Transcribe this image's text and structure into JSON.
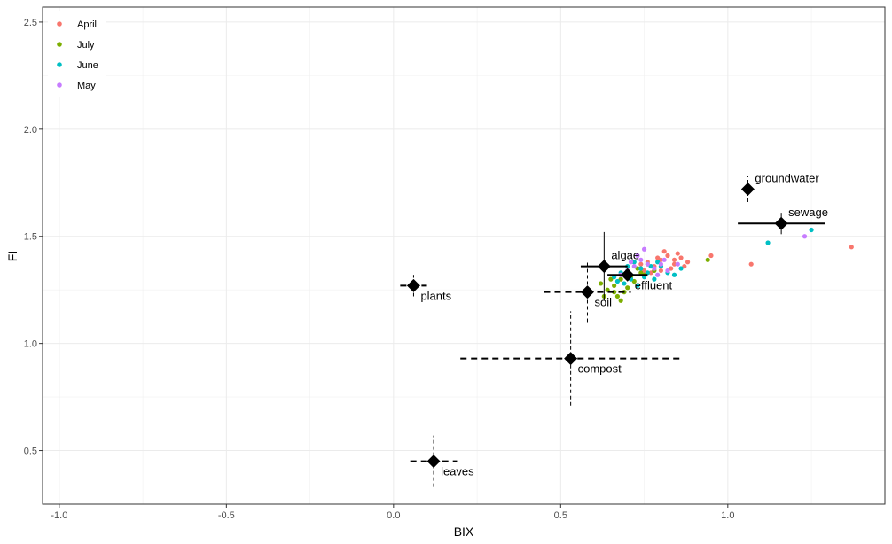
{
  "chart_data": {
    "type": "scatter",
    "xlabel": "BIX",
    "ylabel": "FI",
    "xlim": [
      -1.05,
      1.47
    ],
    "ylim": [
      0.25,
      2.57
    ],
    "xticks": [
      -1.0,
      -0.5,
      0.0,
      0.5,
      1.0
    ],
    "xtick_labels": [
      "-1.0",
      "-0.5",
      "0.0",
      "0.5",
      "1.0"
    ],
    "yticks": [
      0.5,
      1.0,
      1.5,
      2.0,
      2.5
    ],
    "ytick_labels": [
      "0.5",
      "1.0",
      "1.5",
      "2.0",
      "2.5"
    ],
    "grid": true,
    "legend_position": "top-left",
    "series": [
      {
        "name": "April",
        "color": "#F8766D",
        "points": [
          [
            0.76,
            1.38
          ],
          [
            0.78,
            1.36
          ],
          [
            0.8,
            1.39
          ],
          [
            0.82,
            1.41
          ],
          [
            0.84,
            1.37
          ],
          [
            0.86,
            1.4
          ],
          [
            0.88,
            1.38
          ],
          [
            0.85,
            1.42
          ],
          [
            0.81,
            1.43
          ],
          [
            0.79,
            1.4
          ],
          [
            0.75,
            1.34
          ],
          [
            0.83,
            1.35
          ],
          [
            0.87,
            1.36
          ],
          [
            0.95,
            1.41
          ],
          [
            1.07,
            1.37
          ],
          [
            1.37,
            1.45
          ],
          [
            0.77,
            1.33
          ],
          [
            0.8,
            1.34
          ],
          [
            0.74,
            1.37
          ],
          [
            0.84,
            1.39
          ]
        ]
      },
      {
        "name": "July",
        "color": "#7CAE00",
        "points": [
          [
            0.62,
            1.28
          ],
          [
            0.64,
            1.25
          ],
          [
            0.66,
            1.27
          ],
          [
            0.68,
            1.3
          ],
          [
            0.7,
            1.26
          ],
          [
            0.72,
            1.29
          ],
          [
            0.74,
            1.33
          ],
          [
            0.67,
            1.22
          ],
          [
            0.69,
            1.24
          ],
          [
            0.71,
            1.31
          ],
          [
            0.73,
            1.35
          ],
          [
            0.75,
            1.32
          ],
          [
            0.65,
            1.3
          ],
          [
            0.63,
            1.22
          ],
          [
            0.68,
            1.2
          ],
          [
            0.76,
            1.37
          ],
          [
            0.94,
            1.39
          ],
          [
            0.78,
            1.34
          ],
          [
            0.7,
            1.34
          ],
          [
            0.66,
            1.24
          ]
        ]
      },
      {
        "name": "June",
        "color": "#00BFC4",
        "points": [
          [
            0.66,
            1.31
          ],
          [
            0.68,
            1.33
          ],
          [
            0.7,
            1.36
          ],
          [
            0.72,
            1.38
          ],
          [
            0.74,
            1.35
          ],
          [
            0.76,
            1.33
          ],
          [
            0.78,
            1.3
          ],
          [
            0.73,
            1.27
          ],
          [
            0.69,
            1.28
          ],
          [
            0.8,
            1.36
          ],
          [
            0.82,
            1.33
          ],
          [
            0.84,
            1.32
          ],
          [
            0.86,
            1.35
          ],
          [
            0.71,
            1.3
          ],
          [
            1.12,
            1.47
          ],
          [
            1.25,
            1.53
          ],
          [
            0.75,
            1.31
          ],
          [
            0.67,
            1.29
          ],
          [
            0.79,
            1.38
          ],
          [
            0.77,
            1.36
          ]
        ]
      },
      {
        "name": "May",
        "color": "#C77CFF",
        "points": [
          [
            0.7,
            1.34
          ],
          [
            0.72,
            1.36
          ],
          [
            0.74,
            1.39
          ],
          [
            0.76,
            1.37
          ],
          [
            0.78,
            1.35
          ],
          [
            0.8,
            1.37
          ],
          [
            0.82,
            1.34
          ],
          [
            0.75,
            1.44
          ],
          [
            0.73,
            1.41
          ],
          [
            0.85,
            1.37
          ],
          [
            0.68,
            1.32
          ],
          [
            1.23,
            1.5
          ],
          [
            0.71,
            1.38
          ],
          [
            0.79,
            1.32
          ],
          [
            0.81,
            1.39
          ]
        ]
      }
    ],
    "sources": [
      {
        "name": "groundwater",
        "x": 1.06,
        "y": 1.72,
        "xerr": 0.0,
        "yerr": 0.06,
        "xstyle": "solid",
        "ystyle": "dashed",
        "label_side": "right-up"
      },
      {
        "name": "sewage",
        "x": 1.16,
        "y": 1.56,
        "xerr": 0.13,
        "yerr": 0.05,
        "xstyle": "solid",
        "ystyle": "solid",
        "label_side": "right-up"
      },
      {
        "name": "algae",
        "x": 0.63,
        "y": 1.36,
        "xerr": 0.07,
        "yerr": 0.16,
        "xstyle": "solid",
        "ystyle": "solid",
        "label_side": "right-up"
      },
      {
        "name": "effluent",
        "x": 0.7,
        "y": 1.32,
        "xerr": 0.06,
        "yerr": 0.0,
        "xstyle": "solid",
        "ystyle": "solid",
        "label_side": "right-down"
      },
      {
        "name": "soil",
        "x": 0.58,
        "y": 1.24,
        "xerr": 0.13,
        "yerr": 0.14,
        "xstyle": "dashed",
        "ystyle": "dashed",
        "label_side": "right-down"
      },
      {
        "name": "plants",
        "x": 0.06,
        "y": 1.27,
        "xerr": 0.04,
        "yerr": 0.05,
        "xstyle": "dashed",
        "ystyle": "dashed",
        "label_side": "right-down"
      },
      {
        "name": "compost",
        "x": 0.53,
        "y": 0.93,
        "xerr": 0.33,
        "yerr": 0.22,
        "xstyle": "dashed",
        "ystyle": "dashed",
        "label_side": "right-down"
      },
      {
        "name": "leaves",
        "x": 0.12,
        "y": 0.45,
        "xerr": 0.07,
        "yerr": 0.12,
        "xstyle": "dashed",
        "ystyle": "dashed",
        "label_side": "right-down"
      }
    ]
  }
}
